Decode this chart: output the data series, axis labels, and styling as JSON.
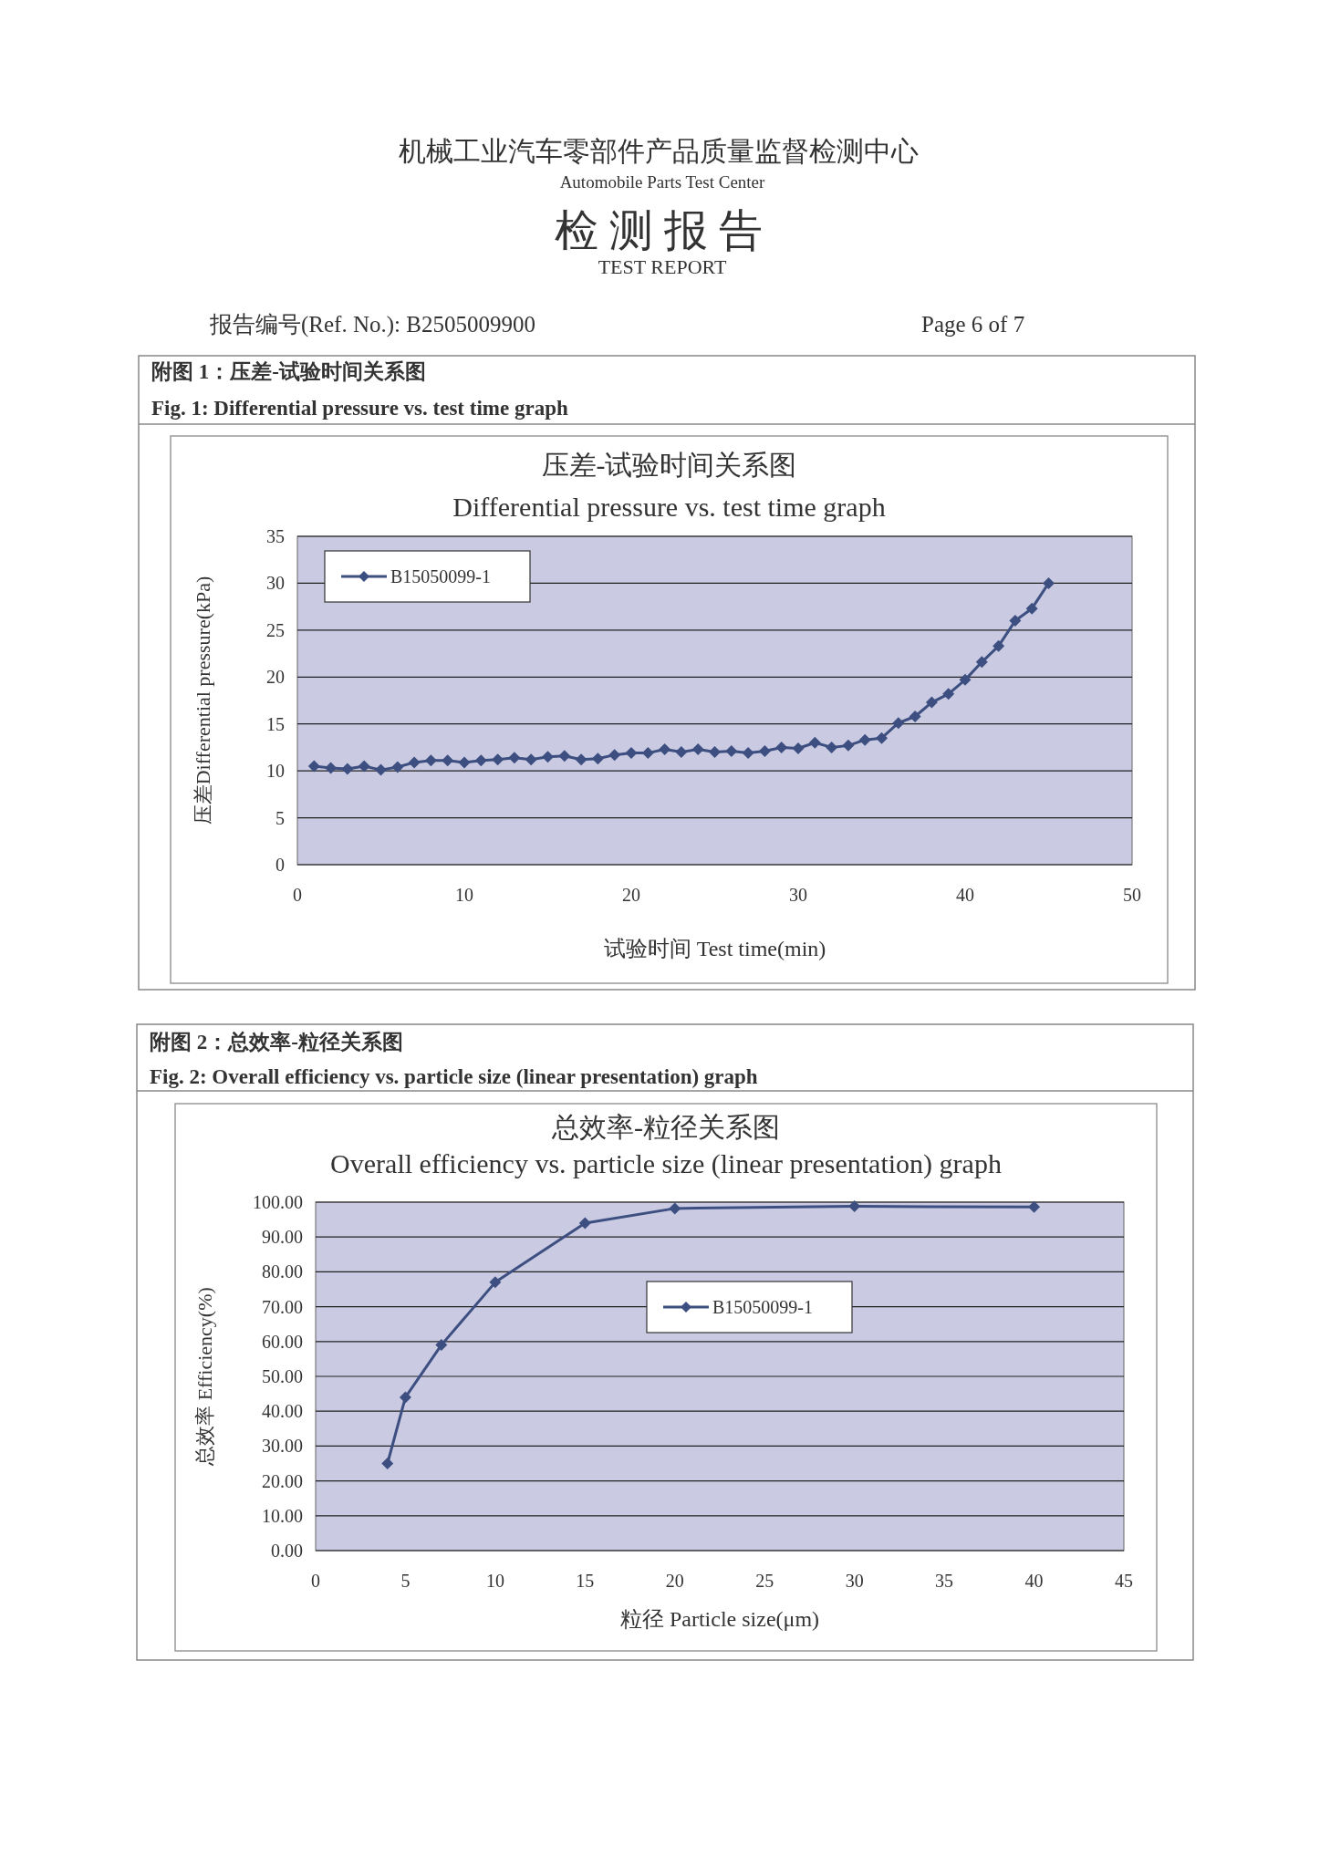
{
  "chart_data": [
    {
      "type": "line",
      "title": "压差-试验时间关系图",
      "subtitle": "Differential pressure vs. test time graph",
      "xlabel": "试验时间 Test time(min)",
      "ylabel": "压差Differential pressure(kPa)",
      "annotations": [
        "机械工业汽车零部件产品质量监督检测中心",
        "Automobile Parts Test Center",
        "检 测 报 告",
        "TEST REPORT",
        "报告编号(Ref. No.):   B2505009900",
        "Page   6   of   7",
        "附图 1：压差-试验时间关系图",
        "Fig. 1: Differential pressure vs. test time graph"
      ],
      "x": [
        1,
        2,
        3,
        4,
        5,
        6,
        7,
        8,
        9,
        10,
        11,
        12,
        13,
        14,
        15,
        16,
        17,
        18,
        19,
        20,
        21,
        22,
        23,
        24,
        25,
        26,
        27,
        28,
        29,
        30,
        31,
        32,
        33,
        34,
        35,
        36,
        37,
        38,
        39,
        40,
        41,
        42,
        43,
        44,
        45
      ],
      "series": [
        {
          "name": "B15050099-1",
          "color": "#3d4f80",
          "values": [
            10.5,
            10.3,
            10.2,
            10.5,
            10.1,
            10.4,
            10.9,
            11.1,
            11.1,
            10.9,
            11.1,
            11.2,
            11.4,
            11.2,
            11.5,
            11.6,
            11.2,
            11.3,
            11.7,
            11.9,
            11.9,
            12.3,
            12.0,
            12.3,
            12.0,
            12.1,
            11.9,
            12.1,
            12.5,
            12.4,
            13.0,
            12.5,
            12.7,
            13.3,
            13.5,
            15.1,
            15.8,
            17.3,
            18.2,
            19.7,
            21.6,
            23.3,
            26.0,
            27.3,
            30.0
          ]
        }
      ],
      "xlim": [
        0,
        50
      ],
      "xticks": [
        0,
        10,
        20,
        30,
        40,
        50
      ],
      "ylim": [
        0,
        35
      ],
      "yticks": [
        0,
        5,
        10,
        15,
        20,
        25,
        30,
        35
      ],
      "grid": "y",
      "legend": "top left",
      "marker": "diamond",
      "line_style": "solid"
    },
    {
      "type": "line",
      "title": "总效率-粒径关系图",
      "subtitle": "Overall efficiency vs. particle size (linear presentation) graph",
      "xlabel": "粒径 Particle size(μm)",
      "ylabel": "总效率 Efficiency(%)",
      "annotations": [
        "附图 2：总效率-粒径关系图",
        "Fig. 2: Overall efficiency vs. particle size (linear presentation) graph"
      ],
      "x": [
        4,
        5,
        7,
        10,
        15,
        20,
        30,
        40
      ],
      "series": [
        {
          "name": "B15050099-1",
          "color": "#3d4f80",
          "values": [
            25,
            44,
            59,
            77,
            94,
            98.2,
            98.8,
            98.6
          ]
        }
      ],
      "xlim": [
        0,
        45
      ],
      "xticks": [
        0,
        5,
        10,
        15,
        20,
        25,
        30,
        35,
        40,
        45
      ],
      "ylim": [
        0,
        100
      ],
      "yticks": [
        {
          "value": 0,
          "label": "0.00"
        },
        {
          "value": 10,
          "label": "10.00"
        },
        {
          "value": 20,
          "label": "20.00"
        },
        {
          "value": 30,
          "label": "30.00"
        },
        {
          "value": 40,
          "label": "40.00"
        },
        {
          "value": 50,
          "label": "50.00"
        },
        {
          "value": 60,
          "label": "60.00"
        },
        {
          "value": 70,
          "label": "70.00"
        },
        {
          "value": 80,
          "label": "80.00"
        },
        {
          "value": 90,
          "label": "90.00"
        },
        {
          "value": 100,
          "label": "100.00"
        }
      ],
      "grid": "y",
      "legend": "top",
      "marker": "diamond",
      "line_style": "solid"
    }
  ]
}
